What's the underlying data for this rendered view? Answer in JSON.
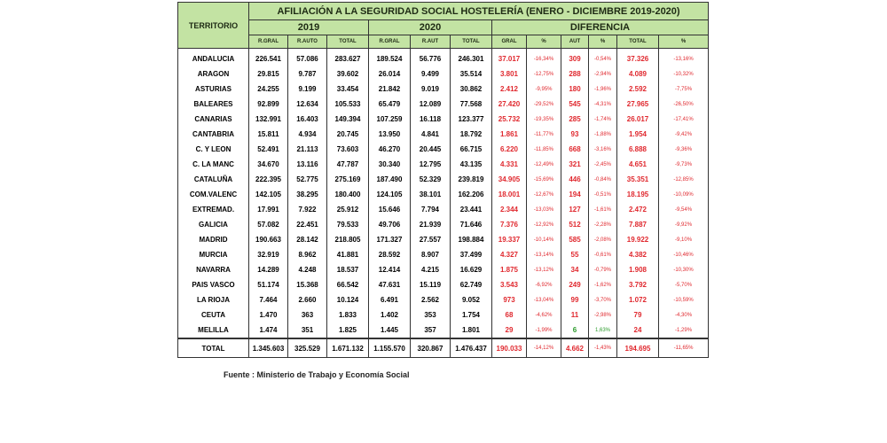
{
  "table": {
    "title": "AFILIACIÓN A LA SEGURIDAD SOCIAL HOSTELERÍA (ENERO - DICIEMBRE 2019-2020)",
    "territory_header": "TERRITORIO",
    "groups": [
      "2019",
      "2020",
      "DIFERENCIA"
    ],
    "subheaders": [
      "R.GRAL",
      "R.AUTO",
      "TOTAL",
      "R.GRAL",
      "R.AUT",
      "TOTAL",
      "GRAL",
      "%",
      "AUT",
      "%",
      "TOTAL",
      "%"
    ],
    "rows": [
      {
        "name": "ANDALUCIA",
        "cells": [
          "226.541",
          "57.086",
          "283.627",
          "189.524",
          "56.776",
          "246.301",
          "37.017",
          "-16,34%",
          "309",
          "-0,54%",
          "37.326",
          "-13,16%"
        ]
      },
      {
        "name": "ARAGON",
        "cells": [
          "29.815",
          "9.787",
          "39.602",
          "26.014",
          "9.499",
          "35.514",
          "3.801",
          "-12,75%",
          "288",
          "-2,94%",
          "4.089",
          "-10,32%"
        ]
      },
      {
        "name": "ASTURIAS",
        "cells": [
          "24.255",
          "9.199",
          "33.454",
          "21.842",
          "9.019",
          "30.862",
          "2.412",
          "-9,95%",
          "180",
          "-1,96%",
          "2.592",
          "-7,75%"
        ]
      },
      {
        "name": "BALEARES",
        "cells": [
          "92.899",
          "12.634",
          "105.533",
          "65.479",
          "12.089",
          "77.568",
          "27.420",
          "-29,52%",
          "545",
          "-4,31%",
          "27.965",
          "-26,50%"
        ]
      },
      {
        "name": "CANARIAS",
        "cells": [
          "132.991",
          "16.403",
          "149.394",
          "107.259",
          "16.118",
          "123.377",
          "25.732",
          "-19,35%",
          "285",
          "-1,74%",
          "26.017",
          "-17,41%"
        ]
      },
      {
        "name": "CANTABRIA",
        "cells": [
          "15.811",
          "4.934",
          "20.745",
          "13.950",
          "4.841",
          "18.792",
          "1.861",
          "-11,77%",
          "93",
          "-1,88%",
          "1.954",
          "-9,42%"
        ]
      },
      {
        "name": "C. Y LEON",
        "cells": [
          "52.491",
          "21.113",
          "73.603",
          "46.270",
          "20.445",
          "66.715",
          "6.220",
          "-11,85%",
          "668",
          "-3,16%",
          "6.888",
          "-9,36%"
        ]
      },
      {
        "name": "C. LA MANC",
        "cells": [
          "34.670",
          "13.116",
          "47.787",
          "30.340",
          "12.795",
          "43.135",
          "4.331",
          "-12,49%",
          "321",
          "-2,45%",
          "4.651",
          "-9,73%"
        ]
      },
      {
        "name": "CATALUÑA",
        "cells": [
          "222.395",
          "52.775",
          "275.169",
          "187.490",
          "52.329",
          "239.819",
          "34.905",
          "-15,69%",
          "446",
          "-0,84%",
          "35.351",
          "-12,85%"
        ]
      },
      {
        "name": "COM.VALENC",
        "cells": [
          "142.105",
          "38.295",
          "180.400",
          "124.105",
          "38.101",
          "162.206",
          "18.001",
          "-12,67%",
          "194",
          "-0,51%",
          "18.195",
          "-10,09%"
        ]
      },
      {
        "name": "EXTREMAD.",
        "cells": [
          "17.991",
          "7.922",
          "25.912",
          "15.646",
          "7.794",
          "23.441",
          "2.344",
          "-13,03%",
          "127",
          "-1,61%",
          "2.472",
          "-9,54%"
        ]
      },
      {
        "name": "GALICIA",
        "cells": [
          "57.082",
          "22.451",
          "79.533",
          "49.706",
          "21.939",
          "71.646",
          "7.376",
          "-12,92%",
          "512",
          "-2,28%",
          "7.887",
          "-9,92%"
        ]
      },
      {
        "name": "MADRID",
        "cells": [
          "190.663",
          "28.142",
          "218.805",
          "171.327",
          "27.557",
          "198.884",
          "19.337",
          "-10,14%",
          "585",
          "-2,08%",
          "19.922",
          "-9,10%"
        ]
      },
      {
        "name": "MURCIA",
        "cells": [
          "32.919",
          "8.962",
          "41.881",
          "28.592",
          "8.907",
          "37.499",
          "4.327",
          "-13,14%",
          "55",
          "-0,61%",
          "4.382",
          "-10,46%"
        ]
      },
      {
        "name": "NAVARRA",
        "cells": [
          "14.289",
          "4.248",
          "18.537",
          "12.414",
          "4.215",
          "16.629",
          "1.875",
          "-13,12%",
          "34",
          "-0,79%",
          "1.908",
          "-10,30%"
        ]
      },
      {
        "name": "PAIS VASCO",
        "cells": [
          "51.174",
          "15.368",
          "66.542",
          "47.631",
          "15.119",
          "62.749",
          "3.543",
          "-6,92%",
          "249",
          "-1,62%",
          "3.792",
          "-5,70%"
        ]
      },
      {
        "name": "LA RIOJA",
        "cells": [
          "7.464",
          "2.660",
          "10.124",
          "6.491",
          "2.562",
          "9.052",
          "973",
          "-13,04%",
          "99",
          "-3,70%",
          "1.072",
          "-10,59%"
        ]
      },
      {
        "name": "CEUTA",
        "cells": [
          "1.470",
          "363",
          "1.833",
          "1.402",
          "353",
          "1.754",
          "68",
          "-4,62%",
          "11",
          "-2,98%",
          "79",
          "-4,30%"
        ]
      },
      {
        "name": "MELILLA",
        "cells": [
          "1.474",
          "351",
          "1.825",
          "1.445",
          "357",
          "1.801",
          "29",
          "-1,99%",
          "6",
          "1,63%",
          "24",
          "-1,29%"
        ]
      }
    ],
    "total": {
      "name": "TOTAL",
      "cells": [
        "1.345.603",
        "325.529",
        "1.671.132",
        "1.155.570",
        "320.867",
        "1.476.437",
        "190.033",
        "-14,12%",
        "4.662",
        "-1,43%",
        "194.695",
        "-11,65%"
      ]
    },
    "colors": {
      "header_bg": "#c3e3a3",
      "diff_text": "#e0282e",
      "positive_text": "#2b9b2b"
    }
  },
  "source": "Fuente : Ministerio de Trabajo y Economía Social"
}
